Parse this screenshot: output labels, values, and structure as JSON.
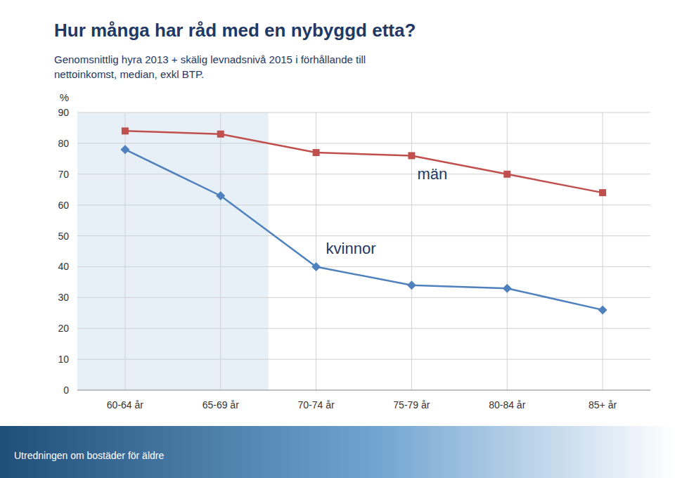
{
  "chart_data": {
    "type": "line",
    "title": "Hur många har råd med en nybyggd etta?",
    "subtitle": [
      "Genomsnittlig hyra 2013 + skälig levnadsnivå 2015 i förhållande till",
      "nettoinkomst, median, exkl BTP."
    ],
    "y_label": "%",
    "footer": "Utredningen om bostäder för äldre",
    "categories": [
      "60-64 år",
      "65-69 år",
      "70-74 år",
      "75-79 år",
      "80-84 år",
      "85+ år"
    ],
    "series": [
      {
        "name": "män",
        "color": "#C0504D",
        "marker": "square",
        "values": [
          84,
          83,
          77,
          76,
          70,
          64
        ]
      },
      {
        "name": "kvinnor",
        "color": "#4F81BD",
        "marker": "diamond",
        "values": [
          78,
          63,
          40,
          34,
          33,
          26
        ]
      }
    ],
    "ylim": [
      0,
      90
    ],
    "yticks": [
      0,
      10,
      20,
      30,
      40,
      50,
      60,
      70,
      80,
      90
    ],
    "grid": true
  }
}
